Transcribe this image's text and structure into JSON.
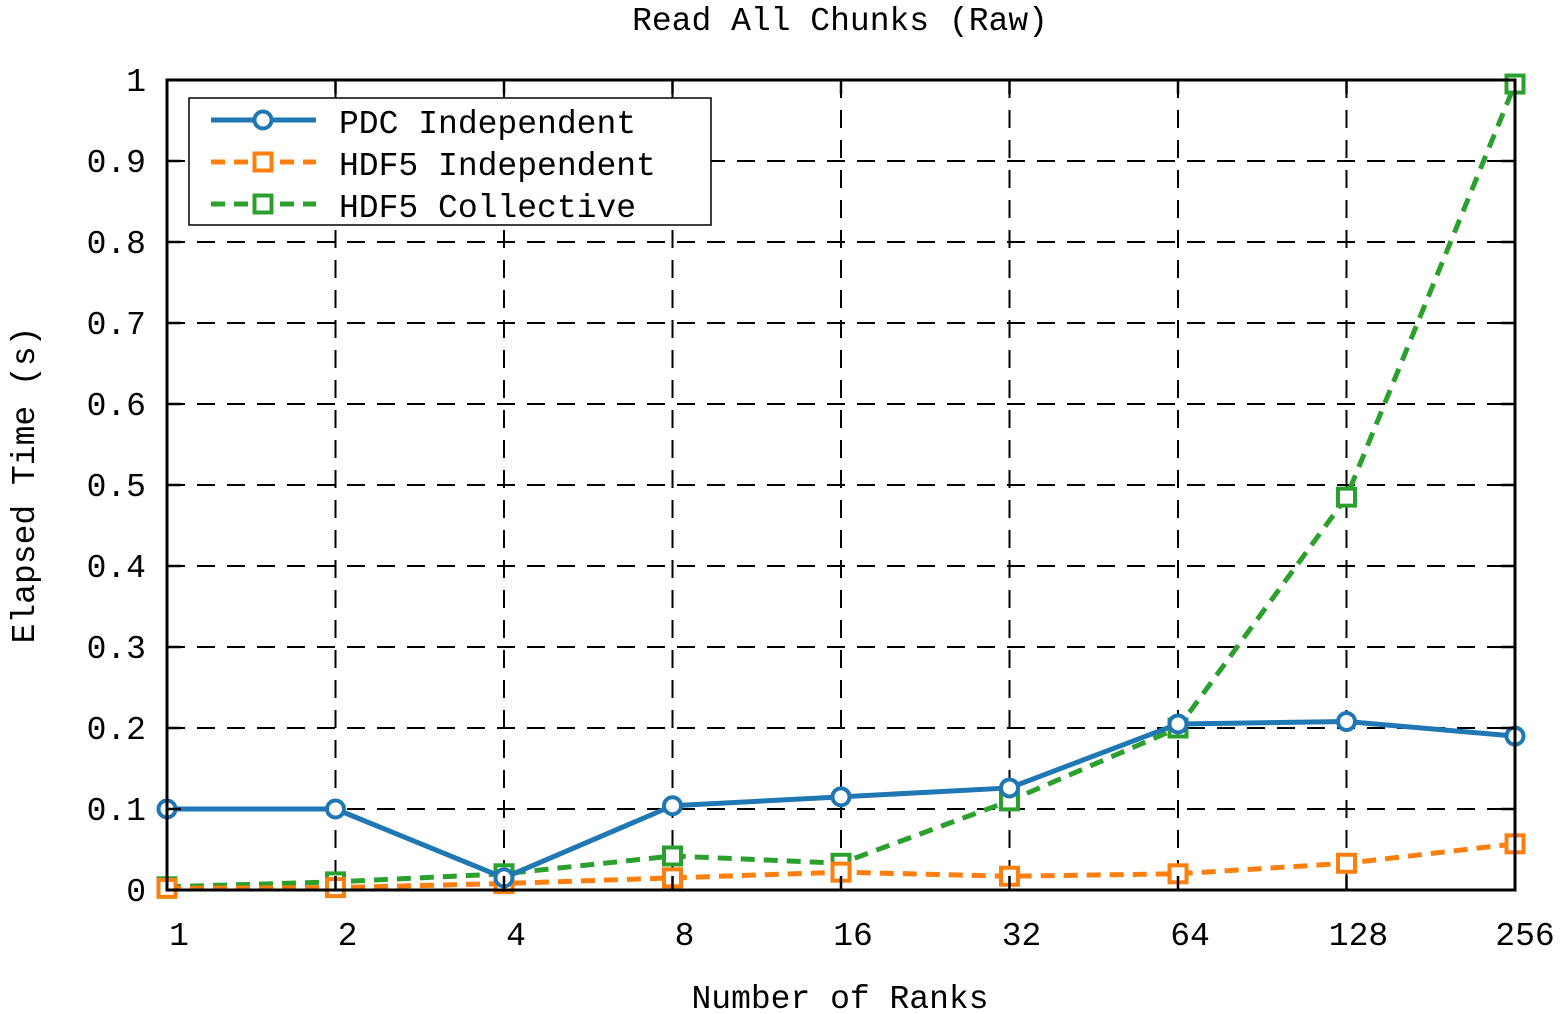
{
  "chart_data": {
    "type": "line",
    "title": "Read All Chunks (Raw)",
    "xlabel": "Number of Ranks",
    "ylabel": "Elapsed Time (s)",
    "x_scale": "log2",
    "categories": [
      "1",
      "2",
      "4",
      "8",
      "16",
      "32",
      "64",
      "128",
      "256"
    ],
    "x": [
      1,
      2,
      4,
      8,
      16,
      32,
      64,
      128,
      256
    ],
    "ylim": [
      0,
      1
    ],
    "yticks": [
      "0",
      "0.1",
      "0.2",
      "0.3",
      "0.4",
      "0.5",
      "0.6",
      "0.7",
      "0.8",
      "0.9",
      "1"
    ],
    "grid": true,
    "legend_position": "top-left",
    "series": [
      {
        "name": "PDC Independent",
        "color": "#1f77b4",
        "marker": "circle",
        "line_style": "solid",
        "values": [
          0.1,
          0.1,
          0.015,
          0.104,
          0.115,
          0.126,
          0.205,
          0.208,
          0.19
        ]
      },
      {
        "name": "HDF5 Independent",
        "color": "#ff7f0e",
        "marker": "square",
        "line_style": "dashed",
        "values": [
          0.002,
          0.003,
          0.008,
          0.015,
          0.022,
          0.017,
          0.02,
          0.033,
          0.057
        ]
      },
      {
        "name": "HDF5 Collective",
        "color": "#2ca02c",
        "marker": "square",
        "line_style": "dashed",
        "values": [
          0.004,
          0.01,
          0.02,
          0.042,
          0.033,
          0.11,
          0.2,
          0.485,
          0.995
        ]
      }
    ]
  }
}
